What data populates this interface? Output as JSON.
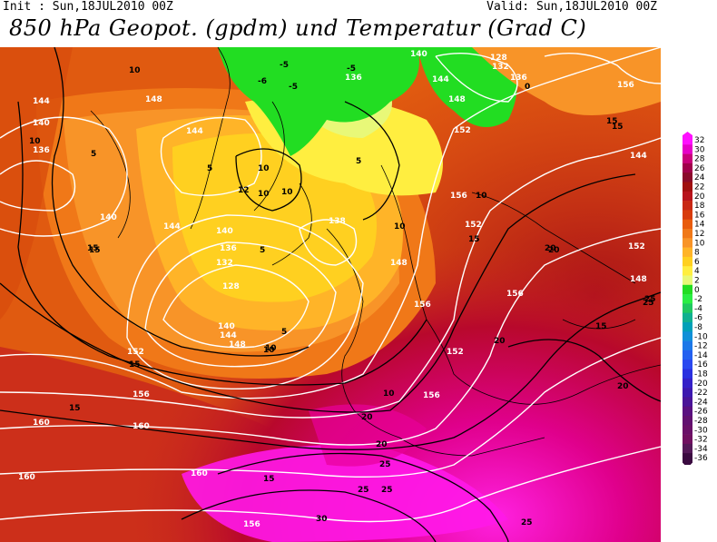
{
  "header": {
    "init": "Init : Sun,18JUL2010 00Z",
    "valid": "Valid: Sun,18JUL2010 00Z",
    "title": "850 hPa Geopot. (gpdm) und Temperatur (Grad C)"
  },
  "legend": {
    "labels": [
      "32",
      "30",
      "28",
      "26",
      "24",
      "22",
      "20",
      "18",
      "16",
      "14",
      "12",
      "10",
      "8",
      "6",
      "4",
      "2",
      "0",
      "-2",
      "-4",
      "-6",
      "-8",
      "-10",
      "-12",
      "-14",
      "-16",
      "-18",
      "-20",
      "-22",
      "-24",
      "-26",
      "-28",
      "-30",
      "-32",
      "-34",
      "-36"
    ],
    "colors": [
      "#ff10ff",
      "#e600c8",
      "#c8007a",
      "#a0004a",
      "#8a0a2a",
      "#a01010",
      "#b8141c",
      "#c82814",
      "#d83c0c",
      "#e85c0c",
      "#f07818",
      "#f89428",
      "#ffb428",
      "#ffd020",
      "#ffee40",
      "#e8f878",
      "#22dd22",
      "#2aee44",
      "#20c860",
      "#10b090",
      "#00a0b8",
      "#1090d8",
      "#1c78e8",
      "#2460f0",
      "#2a48f0",
      "#2a30e0",
      "#3420c8",
      "#3c18b0",
      "#4a1498",
      "#5a1080",
      "#621070",
      "#6a1068",
      "#701060",
      "#541858",
      "#3a0a40"
    ]
  },
  "geopotential_labels": [
    "144",
    "140",
    "136",
    "148",
    "144",
    "140",
    "128",
    "132",
    "136",
    "140",
    "144",
    "148",
    "152",
    "156",
    "160",
    "160",
    "160",
    "156",
    "152",
    "156",
    "156",
    "152",
    "148",
    "144",
    "136",
    "132",
    "128",
    "136",
    "140",
    "138",
    "148",
    "156",
    "152",
    "144",
    "148",
    "156",
    "152",
    "156",
    "160",
    "140",
    "144"
  ],
  "temperature_labels": [
    "10",
    "10",
    "5",
    "5",
    "-5",
    "-5",
    "-6",
    "-5",
    "0",
    "5",
    "10",
    "12",
    "5",
    "10",
    "15",
    "15",
    "15",
    "15",
    "10",
    "10",
    "15",
    "15",
    "20",
    "20",
    "25",
    "20",
    "20",
    "25",
    "20",
    "25",
    "25",
    "30",
    "25",
    "15",
    "15",
    "10",
    "10",
    "5",
    "10",
    "20",
    "15",
    "25",
    "10"
  ]
}
